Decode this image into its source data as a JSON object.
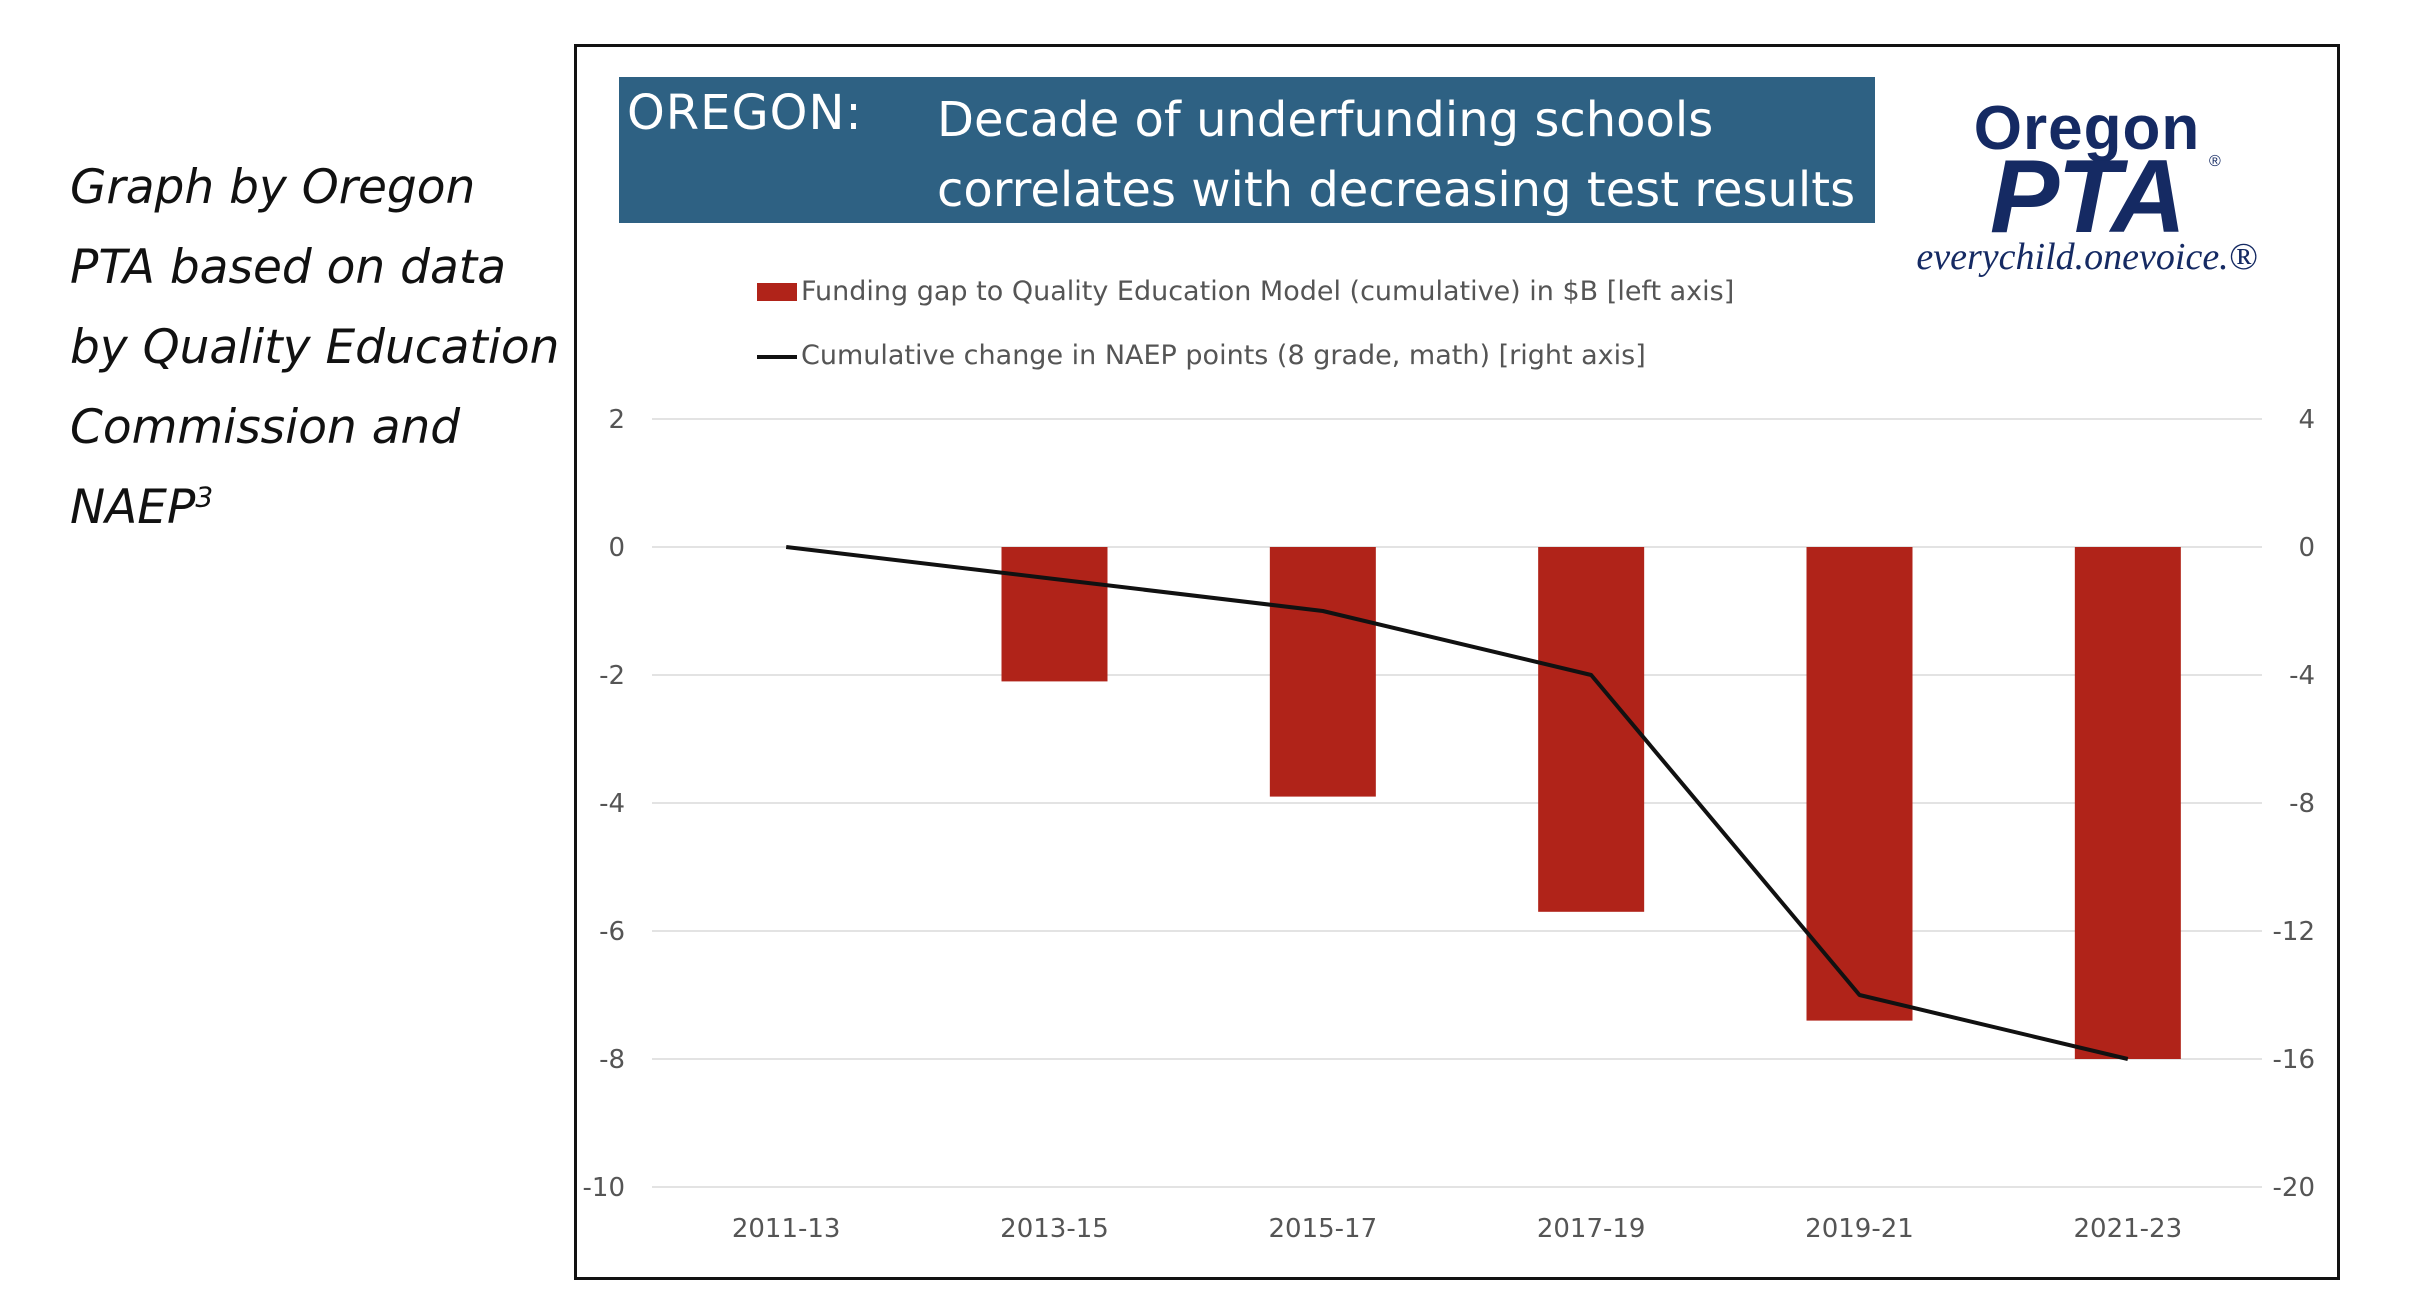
{
  "caption": {
    "lines": [
      "Graph by Oregon",
      "PTA based on data",
      "by Quality Education",
      "Commission and"
    ],
    "last_line": "NAEP",
    "footnote_marker": "3"
  },
  "title": {
    "state": "OREGON:",
    "line1": "Decade of underfunding schools",
    "line2": "correlates with decreasing test results",
    "background_color": "#2e6183"
  },
  "logo": {
    "top": "Oregon",
    "main": "PTA",
    "registered": "®",
    "tagline": "everychild.onevoice.®",
    "color": "#152a63"
  },
  "chart_data": {
    "type": "bar+line",
    "categories": [
      "2011-13",
      "2013-15",
      "2015-17",
      "2017-19",
      "2019-21",
      "2021-23"
    ],
    "series": [
      {
        "name": "Funding gap to Quality Education Model (cumulative) in $B [left axis]",
        "type": "bar",
        "axis": "left",
        "color": "#b02319",
        "values": [
          0,
          -2.1,
          -3.9,
          -5.7,
          -7.4,
          -8.0
        ]
      },
      {
        "name": "Cumulative change in NAEP points (8 grade, math) [right axis]",
        "type": "line",
        "axis": "right",
        "color": "#111111",
        "values": [
          0,
          -1,
          -2,
          -4,
          -14,
          -16
        ]
      }
    ],
    "left_axis": {
      "ticks": [
        2,
        0,
        -2,
        -4,
        -6,
        -8,
        -10
      ],
      "ylim": [
        -10,
        2
      ]
    },
    "right_axis": {
      "ticks": [
        4,
        0,
        -4,
        -8,
        -12,
        -16,
        -20
      ],
      "ylim": [
        -20,
        4
      ]
    },
    "grid": true,
    "legend_position": "top"
  }
}
